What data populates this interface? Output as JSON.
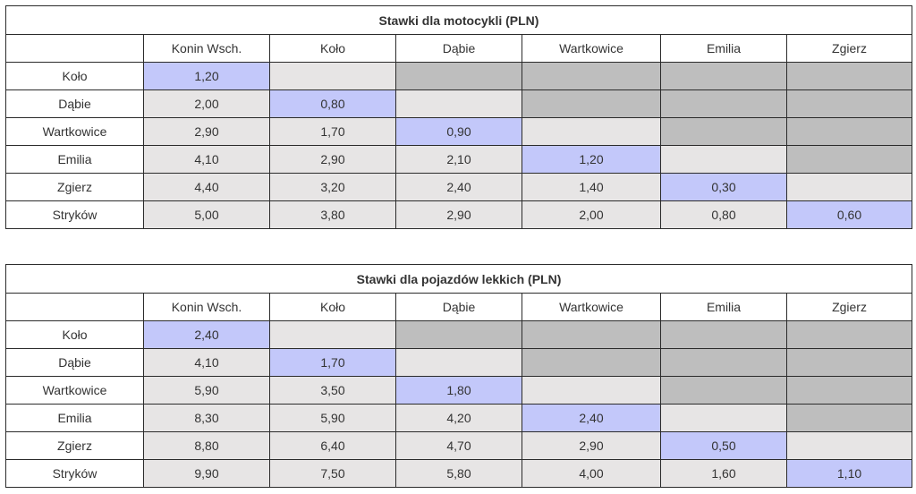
{
  "colors": {
    "diagonal": "#c3c8fa",
    "value_cell": "#e7e5e5",
    "empty_cell": "#bebebe",
    "header": "#ffffff",
    "border": "#2b2b2b"
  },
  "tables": [
    {
      "title": "Stawki dla motocykli (PLN)",
      "columns": [
        "Konin Wsch.",
        "Koło",
        "Dąbie",
        "Wartkowice",
        "Emilia",
        "Zgierz"
      ],
      "rows": [
        {
          "label": "Koło",
          "values": [
            "1,20"
          ]
        },
        {
          "label": "Dąbie",
          "values": [
            "2,00",
            "0,80"
          ]
        },
        {
          "label": "Wartkowice",
          "values": [
            "2,90",
            "1,70",
            "0,90"
          ]
        },
        {
          "label": "Emilia",
          "values": [
            "4,10",
            "2,90",
            "2,10",
            "1,20"
          ]
        },
        {
          "label": "Zgierz",
          "values": [
            "4,40",
            "3,20",
            "2,40",
            "1,40",
            "0,30"
          ]
        },
        {
          "label": "Stryków",
          "values": [
            "5,00",
            "3,80",
            "2,90",
            "2,00",
            "0,80",
            "0,60"
          ]
        }
      ]
    },
    {
      "title": "Stawki dla pojazdów lekkich (PLN)",
      "columns": [
        "Konin Wsch.",
        "Koło",
        "Dąbie",
        "Wartkowice",
        "Emilia",
        "Zgierz"
      ],
      "rows": [
        {
          "label": "Koło",
          "values": [
            "2,40"
          ]
        },
        {
          "label": "Dąbie",
          "values": [
            "4,10",
            "1,70"
          ]
        },
        {
          "label": "Wartkowice",
          "values": [
            "5,90",
            "3,50",
            "1,80"
          ]
        },
        {
          "label": "Emilia",
          "values": [
            "8,30",
            "5,90",
            "4,20",
            "2,40"
          ]
        },
        {
          "label": "Zgierz",
          "values": [
            "8,80",
            "6,40",
            "4,70",
            "2,90",
            "0,50"
          ]
        },
        {
          "label": "Stryków",
          "values": [
            "9,90",
            "7,50",
            "5,80",
            "4,00",
            "1,60",
            "1,10"
          ]
        }
      ]
    }
  ]
}
